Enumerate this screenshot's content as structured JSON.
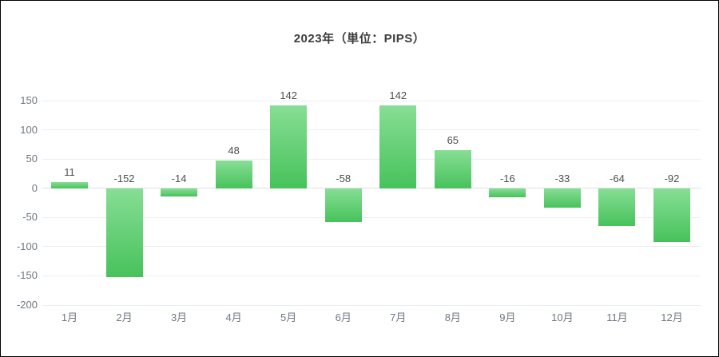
{
  "chart_data": {
    "type": "bar",
    "title": "2023年（単位：PIPS）",
    "year": "2023",
    "unit": "PIPS",
    "categories": [
      "1月",
      "2月",
      "3月",
      "4月",
      "5月",
      "6月",
      "7月",
      "8月",
      "9月",
      "10月",
      "11月",
      "12月"
    ],
    "values": [
      11,
      -152,
      -14,
      48,
      142,
      -58,
      142,
      65,
      -16,
      -33,
      -64,
      -92
    ],
    "value_labels": [
      "11",
      "-152",
      "-14",
      "48",
      "142",
      "-58",
      "142",
      "65",
      "-16",
      "-33",
      "-64",
      "-92"
    ],
    "yticks": [
      150,
      100,
      50,
      0,
      -50,
      -100,
      -150,
      -200
    ],
    "ylim": [
      -200,
      150
    ],
    "xlabel": "",
    "ylabel": "",
    "grid": true,
    "legend": "none",
    "colors": {
      "bar_gradient_top": "#87de95",
      "bar_gradient_bottom": "#47c25b",
      "gridline": "#e9eef6",
      "zero_line": "#dcdfe3",
      "value_label": "#4d4d4d",
      "axis_label": "#6e7781",
      "title": "#3d3d3d",
      "background": "#ffffff",
      "frame_border": "#000000"
    }
  }
}
